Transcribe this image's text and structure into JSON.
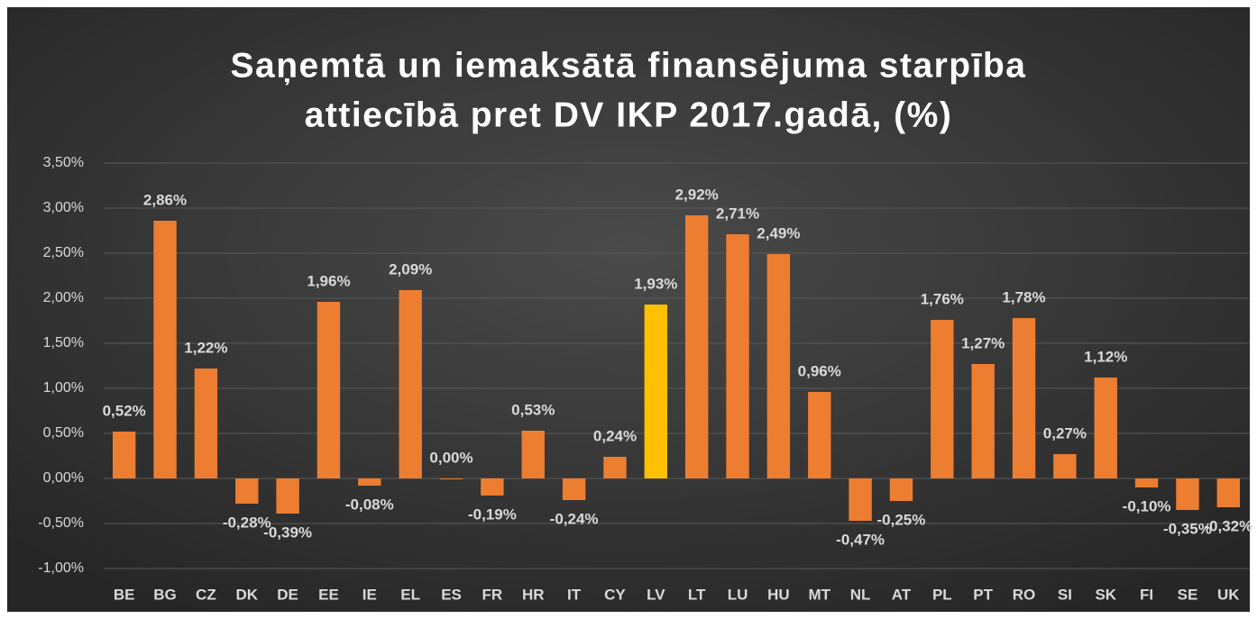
{
  "chart_data": {
    "type": "bar",
    "title": [
      "Saņemtā un iemaksātā finansējuma starpība",
      "attiecībā pret DV IKP 2017.gadā, (%)"
    ],
    "categories": [
      "BE",
      "BG",
      "CZ",
      "DK",
      "DE",
      "EE",
      "IE",
      "EL",
      "ES",
      "FR",
      "HR",
      "IT",
      "CY",
      "LV",
      "LT",
      "LU",
      "HU",
      "MT",
      "NL",
      "AT",
      "PL",
      "PT",
      "RO",
      "SI",
      "SK",
      "FI",
      "SE",
      "UK"
    ],
    "values": [
      0.52,
      2.86,
      1.22,
      -0.28,
      -0.39,
      1.96,
      -0.08,
      2.09,
      0.0,
      -0.19,
      0.53,
      -0.24,
      0.24,
      1.93,
      2.92,
      2.71,
      2.49,
      0.96,
      -0.47,
      -0.25,
      1.76,
      1.27,
      1.78,
      0.27,
      1.12,
      -0.1,
      -0.35,
      -0.32
    ],
    "value_labels": [
      "0,52%",
      "2,86%",
      "1,22%",
      "-0,28%",
      "-0,39%",
      "1,96%",
      "-0,08%",
      "2,09%",
      "0,00%",
      "-0,19%",
      "0,53%",
      "-0,24%",
      "0,24%",
      "1,93%",
      "2,92%",
      "2,71%",
      "2,49%",
      "0,96%",
      "-0,47%",
      "-0,25%",
      "1,76%",
      "1,27%",
      "1,78%",
      "0,27%",
      "1,12%",
      "-0,10%",
      "-0,35%",
      "-0,32%"
    ],
    "colors": [
      "#ed7d31",
      "#ed7d31",
      "#ed7d31",
      "#ed7d31",
      "#ed7d31",
      "#ed7d31",
      "#ed7d31",
      "#ed7d31",
      "#ed7d31",
      "#ed7d31",
      "#ed7d31",
      "#ed7d31",
      "#ed7d31",
      "#ffc000",
      "#ed7d31",
      "#ed7d31",
      "#ed7d31",
      "#ed7d31",
      "#ed7d31",
      "#ed7d31",
      "#ed7d31",
      "#ed7d31",
      "#ed7d31",
      "#ed7d31",
      "#ed7d31",
      "#ed7d31",
      "#ed7d31",
      "#ed7d31"
    ],
    "ylim": [
      -1,
      3.5
    ],
    "yticks": [
      {
        "value": -1,
        "label": "-1,00%"
      },
      {
        "value": -0.5,
        "label": "-0,50%"
      },
      {
        "value": 0,
        "label": "0,00%"
      },
      {
        "value": 0.5,
        "label": "0,50%"
      },
      {
        "value": 1,
        "label": "1,00%"
      },
      {
        "value": 1.5,
        "label": "1,50%"
      },
      {
        "value": 2,
        "label": "2,00%"
      },
      {
        "value": 2.5,
        "label": "2,50%"
      },
      {
        "value": 3,
        "label": "3,00%"
      },
      {
        "value": 3.5,
        "label": "3,50%"
      }
    ],
    "grid": true
  }
}
